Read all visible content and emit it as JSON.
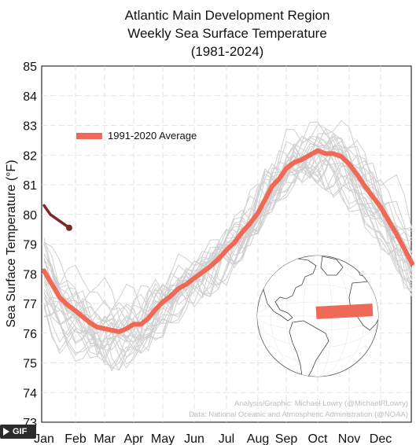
{
  "chart_data": {
    "type": "line",
    "title": "Atlantic Main Development Region",
    "subtitle": "Weekly Sea Surface Temperature",
    "period": "(1981-2024)",
    "ylabel": "Sea Surface Temperature (°F)",
    "xlabel": "",
    "ylim": [
      73,
      85
    ],
    "yticks": [
      73,
      74,
      75,
      76,
      77,
      78,
      79,
      80,
      81,
      82,
      83,
      84,
      85
    ],
    "x_categories": [
      "Jan",
      "Feb",
      "Mar",
      "Apr",
      "May",
      "Jun",
      "Jul",
      "Aug",
      "Sep",
      "Oct",
      "Nov",
      "Dec"
    ],
    "grid": true,
    "legend": {
      "label": "1991-2020 Average",
      "placement": "top-left"
    },
    "colors": {
      "average": "#ee6a57",
      "current_year": "#7a2a2a",
      "historical": "#d0d0d0"
    },
    "series": [
      {
        "name": "1991-2020 Average",
        "x_month": [
          0.0,
          0.25,
          0.5,
          0.75,
          1.0,
          1.25,
          1.5,
          1.75,
          2.0,
          2.25,
          2.5,
          2.75,
          3.0,
          3.25,
          3.5,
          3.75,
          4.0,
          4.25,
          4.5,
          4.75,
          5.0,
          5.25,
          5.5,
          5.75,
          6.0,
          6.25,
          6.5,
          6.75,
          7.0,
          7.25,
          7.5,
          7.75,
          8.0,
          8.25,
          8.5,
          8.75,
          9.0,
          9.25,
          9.5,
          9.75,
          10.0,
          10.25,
          10.5,
          10.75,
          11.0,
          11.25,
          11.5,
          11.75,
          12.0
        ],
        "values": [
          78.1,
          77.65,
          77.2,
          76.95,
          76.75,
          76.55,
          76.35,
          76.2,
          76.15,
          76.1,
          76.05,
          76.15,
          76.3,
          76.3,
          76.5,
          76.8,
          77.05,
          77.25,
          77.5,
          77.65,
          77.85,
          78.05,
          78.25,
          78.5,
          78.8,
          79.05,
          79.4,
          79.7,
          80.05,
          80.5,
          80.95,
          81.2,
          81.55,
          81.75,
          81.85,
          82.0,
          82.15,
          82.05,
          82.05,
          81.95,
          81.7,
          81.35,
          80.95,
          80.6,
          80.25,
          79.8,
          79.35,
          78.85,
          78.35
        ]
      },
      {
        "name": "",
        "x_month": [
          0.0,
          0.2,
          0.4,
          0.6,
          0.8
        ],
        "values": [
          80.3,
          80.0,
          79.85,
          79.7,
          79.55
        ]
      }
    ],
    "historical_count": 28
  },
  "inset_map": {
    "label": "",
    "region_color": "#ee6a57"
  },
  "credits": {
    "line1": "Analysis/Graphic: Michael Lowry (@MichaelRLowry)",
    "line2": "Data: National Oceanic and Atmospheric Administration (@NOAA)"
  },
  "badge": {
    "label": "GIF"
  }
}
